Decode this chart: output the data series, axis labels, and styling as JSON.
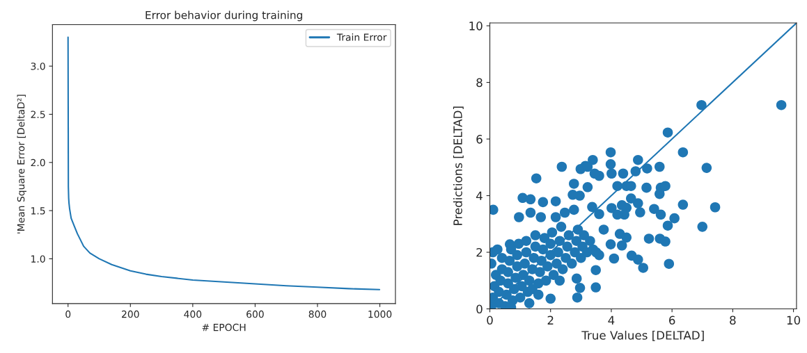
{
  "chart_data": [
    {
      "type": "line",
      "title": "Error behavior during training",
      "xlabel": "# EPOCH",
      "ylabel": "'Mean Square Error [DeltaD²]",
      "legend": "top right",
      "grid": false,
      "xlim": [
        -50,
        1050
      ],
      "xticks": [
        0,
        200,
        400,
        600,
        800,
        1000
      ],
      "ylim": [
        0.535,
        3.43
      ],
      "yticks": [
        {
          "value": 1,
          "label": "1.0"
        },
        1.5,
        {
          "value": 2,
          "label": "2.0"
        },
        2.5,
        {
          "value": 3,
          "label": "3.0"
        }
      ],
      "series": [
        {
          "name": "Train Error",
          "color": "#1f77b4",
          "x": [
            0,
            1,
            2,
            3,
            5,
            10,
            20,
            30,
            50,
            70,
            100,
            140,
            200,
            250,
            300,
            400,
            500,
            600,
            700,
            800,
            900,
            999
          ],
          "values": [
            3.3,
            1.75,
            1.63,
            1.58,
            1.52,
            1.42,
            1.34,
            1.26,
            1.13,
            1.06,
            1.0,
            0.94,
            0.875,
            0.84,
            0.815,
            0.78,
            0.76,
            0.74,
            0.72,
            0.705,
            0.69,
            0.68
          ]
        }
      ]
    },
    {
      "type": "scatter",
      "xlabel": "True Values [DELTAD]",
      "ylabel": "Predictions [DELTAD]",
      "grid": false,
      "xlim": [
        0,
        10.1
      ],
      "xticks": [
        0,
        2,
        4,
        6,
        8,
        10
      ],
      "ylim": [
        0,
        10.1
      ],
      "yticks": [
        0,
        2,
        4,
        6,
        8,
        10
      ],
      "series": [
        {
          "type": "scatter",
          "color": "#1f77b4",
          "marker": "circle",
          "x": [
            9.6,
            6.97,
            5.86,
            6.36,
            7.14,
            7.42,
            7.0,
            6.36,
            6.08,
            5.86,
            5.9,
            5.05,
            4.88,
            4.67,
            4.09,
            3.49,
            3.49,
            2.88,
            2.0,
            2.97,
            2.86,
            5.24,
            5.6,
            5.78,
            5.59,
            4.88,
            3.98,
            3.98,
            3.39,
            3.15,
            2.37,
            1.53,
            0.11,
            1.08,
            5.16,
            5.63,
            5.78,
            5.59,
            5.41,
            5.63,
            4.95,
            4.88,
            4.5,
            4.43,
            4.35,
            4.65,
            4.01,
            4.2,
            4.5,
            4.2,
            4.39,
            4.8,
            5.18,
            4.65,
            4.01,
            3.6,
            3.45,
            2.99,
            3.22,
            2.77,
            3.22,
            2.96,
            2.73,
            3.37,
            3.6,
            3.75,
            2.17,
            1.75,
            1.34,
            0.96,
            1.34,
            1.68,
            2.17,
            2.47,
            2.77,
            4.28,
            4.5,
            4.35,
            3.98,
            0.66,
            0.05,
            0.1,
            0.15,
            0.2,
            0.05,
            0.1,
            0.3,
            0.3,
            0.35,
            0.4,
            0.4,
            0.25,
            0.5,
            0.55,
            0.6,
            0.6,
            0.65,
            0.7,
            0.75,
            0.8,
            0.85,
            0.9,
            0.9,
            0.95,
            1.0,
            1.05,
            1.1,
            1.15,
            1.2,
            1.2,
            1.25,
            1.3,
            1.4,
            1.45,
            1.5,
            1.5,
            1.4,
            1.6,
            1.65,
            1.7,
            1.75,
            1.8,
            1.85,
            1.9,
            2.0,
            2.0,
            2.05,
            2.1,
            2.2,
            2.25,
            2.3,
            2.35,
            2.4,
            2.5,
            2.55,
            2.6,
            2.7,
            2.8,
            2.85,
            2.9,
            3.0,
            3.05,
            3.1,
            3.2,
            3.3,
            3.4,
            3.5,
            3.6,
            1.6,
            1.3,
            0.7,
            2.3
          ],
          "values": [
            7.2,
            7.2,
            6.23,
            5.53,
            4.98,
            3.59,
            2.9,
            3.68,
            3.2,
            2.94,
            1.59,
            1.45,
            1.74,
            1.88,
            1.78,
            1.37,
            0.76,
            0.4,
            0.36,
            0.74,
            1.07,
            2.48,
            2.48,
            2.38,
            5.02,
            5.26,
            5.53,
            5.11,
            5.26,
            5.05,
            5.02,
            4.61,
            3.5,
            3.92,
            4.28,
            4.28,
            4.34,
            4.06,
            3.53,
            3.33,
            3.41,
            3.73,
            3.57,
            3.33,
            3.66,
            3.9,
            3.56,
            3.33,
            4.34,
            4.34,
            4.78,
            4.86,
            4.96,
            4.34,
            4.78,
            4.7,
            4.78,
            4.94,
            5.02,
            4.42,
            4.3,
            4.0,
            4.03,
            3.6,
            3.35,
            2.8,
            3.8,
            3.77,
            3.87,
            3.24,
            3.4,
            3.24,
            3.24,
            3.4,
            3.5,
            2.65,
            2.52,
            2.24,
            2.28,
            2.28,
            0.1,
            0.4,
            0.8,
            1.2,
            1.6,
            2.0,
            0.2,
            0.6,
            1.0,
            1.4,
            1.8,
            2.1,
            0.1,
            0.5,
            0.9,
            1.3,
            1.7,
            2.1,
            0.3,
            0.7,
            1.1,
            1.5,
            1.9,
            2.3,
            0.4,
            0.8,
            1.2,
            1.6,
            2.0,
            2.4,
            0.6,
            1.0,
            1.4,
            1.8,
            2.2,
            2.6,
            0.7,
            0.9,
            1.3,
            1.7,
            2.1,
            2.5,
            1.0,
            1.5,
            1.9,
            2.3,
            2.7,
            1.2,
            1.6,
            2.0,
            2.4,
            2.9,
            1.4,
            1.8,
            2.2,
            2.6,
            1.6,
            2.0,
            2.4,
            2.8,
            1.8,
            2.2,
            2.6,
            2.0,
            2.4,
            2.1,
            2.0,
            1.9,
            0.5,
            0.2,
            0.05,
            1.0
          ]
        },
        {
          "type": "line",
          "color": "#1f77b4",
          "x": [
            0,
            10.1
          ],
          "values": [
            0,
            10.1
          ]
        }
      ]
    }
  ]
}
